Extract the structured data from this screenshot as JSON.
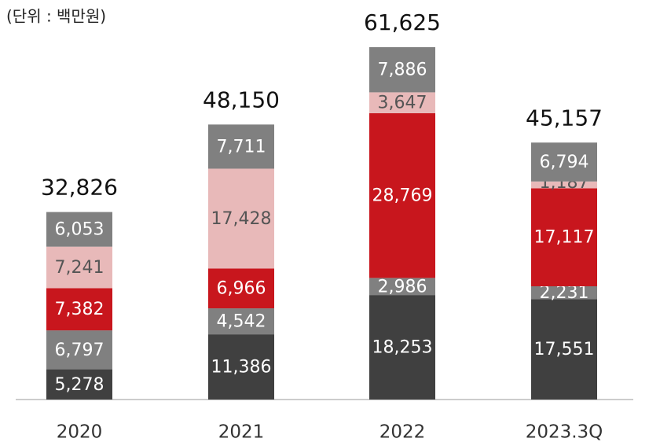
{
  "chart_data": {
    "type": "stacked_bar",
    "subtitle": "(단위 : 백만원)",
    "categories": [
      "2020",
      "2021",
      "2022",
      "2023.3Q"
    ],
    "series": [
      {
        "color": "#404040",
        "values": [
          5278,
          11386,
          18253,
          17551
        ],
        "value_labels": [
          "5,278",
          "11,386",
          "18,253",
          "17,551"
        ]
      },
      {
        "color": "#808080",
        "values": [
          6797,
          4542,
          2986,
          2231
        ],
        "value_labels": [
          "6,797",
          "4,542",
          "2,986",
          "2,231"
        ]
      },
      {
        "color": "#c8161d",
        "values": [
          7382,
          6966,
          28769,
          17117
        ],
        "value_labels": [
          "7,382",
          "6,966",
          "28,769",
          "17,117"
        ]
      },
      {
        "color": "#e8b9b9",
        "values": [
          7241,
          17428,
          3647,
          1187
        ],
        "value_labels": [
          "7,241",
          "17,428",
          "3,647",
          "1,187"
        ]
      },
      {
        "color": "#808080",
        "values": [
          6053,
          7711,
          7886,
          6794
        ],
        "value_labels": [
          "6,053",
          "7,711",
          "7,886",
          "6,794"
        ]
      }
    ],
    "totals": [
      32826,
      48150,
      61625,
      45157
    ],
    "total_labels": [
      "32,826",
      "48,150",
      "61,625",
      "45,157"
    ]
  }
}
